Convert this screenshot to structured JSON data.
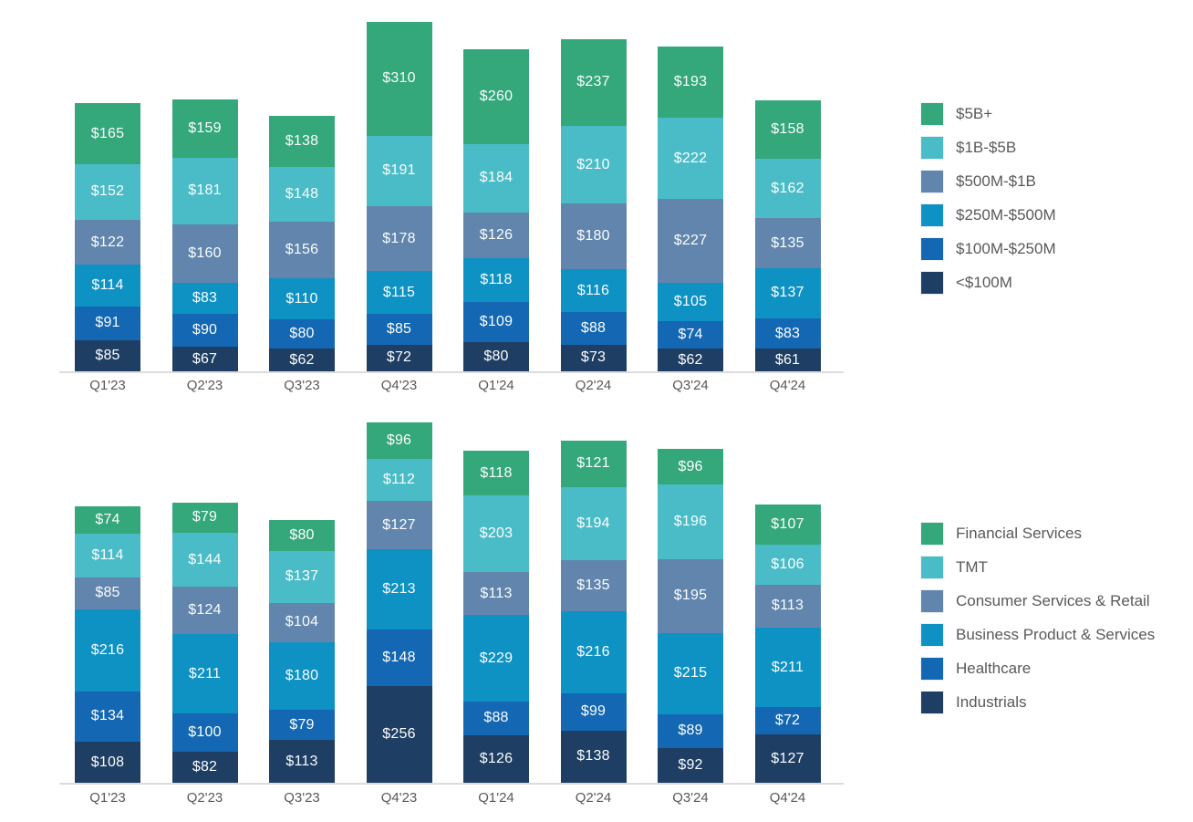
{
  "page": {
    "background": "#ffffff",
    "axis_line_color": "#dcdcdc",
    "axis_label_color": "#595959",
    "value_label_color": "#fcfdfe",
    "legend_text_color": "#595959"
  },
  "chart_data": [
    {
      "type": "bar",
      "stacked": true,
      "orientation": "vertical",
      "title": "",
      "value_prefix": "$",
      "grid": false,
      "y_axis_shown": false,
      "legend_position": "right",
      "categories": [
        "Q1'23",
        "Q2'23",
        "Q3'23",
        "Q4'23",
        "Q1'24",
        "Q2'24",
        "Q3'24",
        "Q4'24"
      ],
      "series": [
        {
          "name": "$5B+",
          "color": "#34a77b",
          "values": [
            165,
            159,
            138,
            310,
            260,
            237,
            193,
            158
          ]
        },
        {
          "name": "$1B-$5B",
          "color": "#4abcc7",
          "values": [
            152,
            181,
            148,
            191,
            184,
            210,
            222,
            162
          ]
        },
        {
          "name": "$500M-$1B",
          "color": "#6185ac",
          "values": [
            122,
            160,
            156,
            178,
            126,
            180,
            227,
            135
          ]
        },
        {
          "name": "$250M-$500M",
          "color": "#0e92c4",
          "values": [
            114,
            83,
            110,
            115,
            118,
            116,
            105,
            137
          ]
        },
        {
          "name": "$100M-$250M",
          "color": "#1467b2",
          "values": [
            91,
            90,
            80,
            85,
            109,
            88,
            74,
            83
          ]
        },
        {
          "name": "<$100M",
          "color": "#1e3e63",
          "values": [
            85,
            67,
            62,
            72,
            80,
            73,
            62,
            61
          ]
        }
      ]
    },
    {
      "type": "bar",
      "stacked": true,
      "orientation": "vertical",
      "title": "",
      "value_prefix": "$",
      "grid": false,
      "y_axis_shown": false,
      "legend_position": "right",
      "categories": [
        "Q1'23",
        "Q2'23",
        "Q3'23",
        "Q4'23",
        "Q1'24",
        "Q2'24",
        "Q3'24",
        "Q4'24"
      ],
      "series": [
        {
          "name": "Financial Services",
          "color": "#34a77b",
          "values": [
            74,
            79,
            80,
            96,
            118,
            121,
            96,
            107
          ]
        },
        {
          "name": "TMT",
          "color": "#4abcc7",
          "values": [
            114,
            144,
            137,
            112,
            203,
            194,
            196,
            106
          ]
        },
        {
          "name": "Consumer Services & Retail",
          "color": "#6185ac",
          "values": [
            85,
            124,
            104,
            127,
            113,
            135,
            195,
            113
          ]
        },
        {
          "name": "Business Product & Services",
          "color": "#0e92c4",
          "values": [
            216,
            211,
            180,
            213,
            229,
            216,
            215,
            211
          ]
        },
        {
          "name": "Healthcare",
          "color": "#1467b2",
          "values": [
            134,
            100,
            79,
            148,
            88,
            99,
            89,
            72
          ]
        },
        {
          "name": "Industrials",
          "color": "#1e3e63",
          "values": [
            108,
            82,
            113,
            256,
            126,
            138,
            92,
            127
          ]
        }
      ]
    }
  ]
}
